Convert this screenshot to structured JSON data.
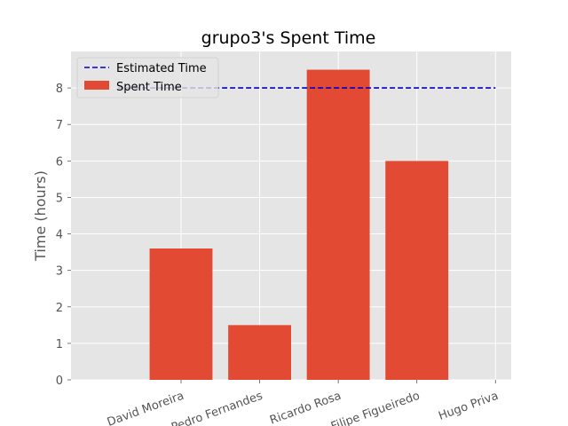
{
  "chart_data": {
    "type": "bar",
    "title": "grupo3's Spent Time",
    "xlabel": "",
    "ylabel": "Time (hours)",
    "categories": [
      "David  Moreira",
      "Pedro Fernandes",
      "Ricardo Rosa",
      "Filipe Figueiredo",
      "Hugo Priva"
    ],
    "series": [
      {
        "name": "Spent Time",
        "values": [
          3.6,
          1.5,
          8.5,
          6.0,
          0
        ]
      }
    ],
    "reference_line": {
      "name": "Estimated Time",
      "value": 8,
      "style": "dashed"
    },
    "ylim": [
      0,
      9
    ],
    "yticks": [
      0,
      1,
      2,
      3,
      4,
      5,
      6,
      7,
      8
    ],
    "xtick_rotation": 20,
    "grid": true,
    "legend": "top-left",
    "colors": {
      "bar": "#E24A33",
      "reference_line": "#0000CC",
      "plot_background": "#E5E5E5",
      "grid": "#FFFFFF"
    }
  }
}
